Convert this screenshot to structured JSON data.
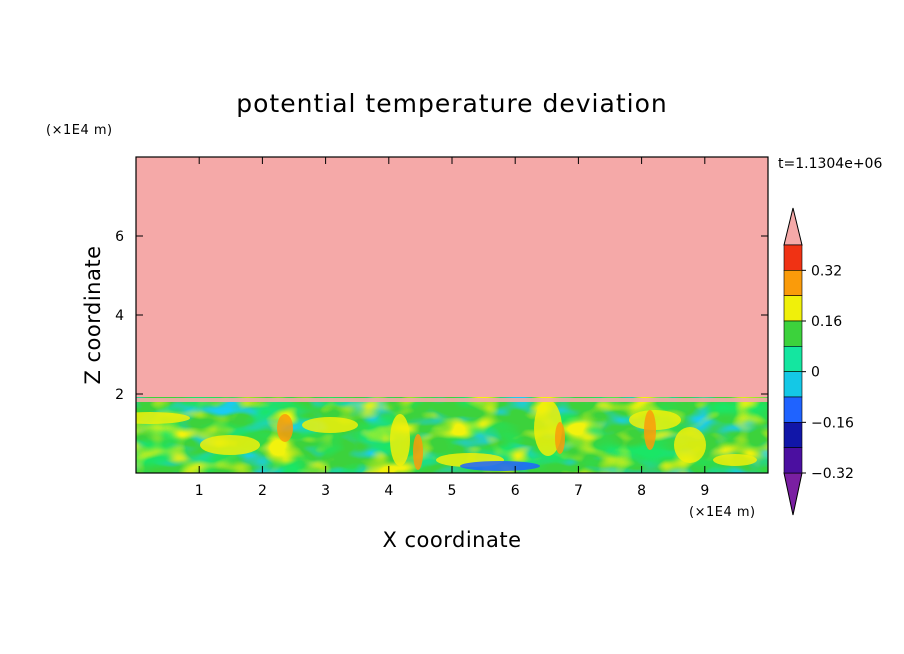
{
  "chart_data": {
    "type": "heatmap",
    "title": "potential temperature deviation",
    "xlabel": "X coordinate",
    "ylabel": "Z coordinate",
    "x_unit": "(×1E4 m)",
    "y_unit": "(×1E4 m)",
    "time_label": "t=1.1304e+06",
    "xlim": [
      0,
      10
    ],
    "ylim": [
      0,
      8
    ],
    "x_ticks": [
      1,
      2,
      3,
      4,
      5,
      6,
      7,
      8,
      9
    ],
    "y_ticks": [
      2,
      4,
      6
    ],
    "colorbar": {
      "levels": [
        -0.4,
        -0.32,
        -0.24,
        -0.16,
        -0.08,
        0,
        0.08,
        0.16,
        0.24,
        0.32,
        0.4
      ],
      "colors": [
        "#7a1fa2",
        "#4b0fa0",
        "#1116a8",
        "#1f63ff",
        "#14c8e6",
        "#14e6a0",
        "#3cd23c",
        "#f0f00a",
        "#fa9b0a",
        "#f03214",
        "#f5a9a8"
      ],
      "labels": [
        "0.32",
        "0.16",
        "0",
        "−0.16",
        "−0.32"
      ],
      "extend": "both"
    }
  }
}
